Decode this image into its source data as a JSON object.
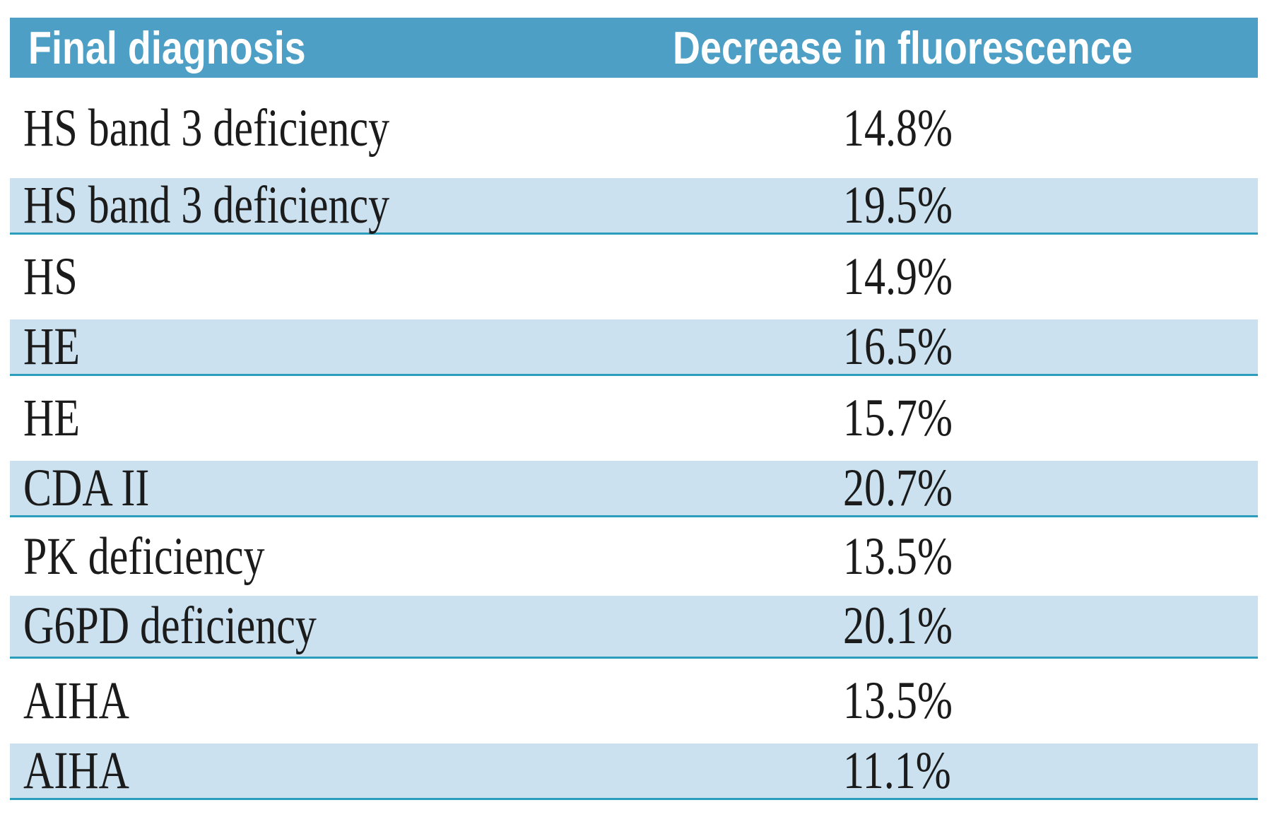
{
  "table": {
    "header": {
      "col1": "Final diagnosis",
      "col2": "Decrease in fluorescence"
    },
    "rows": [
      {
        "diagnosis": "HS band 3 deficiency",
        "decrease": "14.8%"
      },
      {
        "diagnosis": "HS band 3 deficiency",
        "decrease": "19.5%"
      },
      {
        "diagnosis": "HS",
        "decrease": "14.9%"
      },
      {
        "diagnosis": "HE",
        "decrease": "16.5%"
      },
      {
        "diagnosis": "HE",
        "decrease": "15.7%"
      },
      {
        "diagnosis": "CDA II",
        "decrease": "20.7%"
      },
      {
        "diagnosis": "PK deficiency",
        "decrease": "13.5%"
      },
      {
        "diagnosis": "G6PD deficiency",
        "decrease": "20.1%"
      },
      {
        "diagnosis": "AIHA",
        "decrease": "13.5%"
      },
      {
        "diagnosis": "AIHA",
        "decrease": "11.1%"
      }
    ]
  },
  "chart_data": {
    "type": "table",
    "title": "",
    "columns": [
      "Final diagnosis",
      "Decrease in fluorescence"
    ],
    "rows": [
      [
        "HS band 3 deficiency",
        "14.8%"
      ],
      [
        "HS band 3 deficiency",
        "19.5%"
      ],
      [
        "HS",
        "14.9%"
      ],
      [
        "HE",
        "16.5%"
      ],
      [
        "HE",
        "15.7%"
      ],
      [
        "CDA II",
        "20.7%"
      ],
      [
        "PK deficiency",
        "13.5%"
      ],
      [
        "G6PD deficiency",
        "20.1%"
      ],
      [
        "AIHA",
        "13.5%"
      ],
      [
        "AIHA",
        "11.1%"
      ]
    ],
    "decrease_values_percent": [
      14.8,
      19.5,
      14.9,
      16.5,
      15.7,
      20.7,
      13.5,
      20.1,
      13.5,
      11.1
    ],
    "layout_hints": {
      "striped_rows": "even data rows light blue with teal bottom rule",
      "header_style": "solid teal-blue band, white bold condensed sans text"
    }
  },
  "colors": {
    "header_bg": "#4D9FC5",
    "row_stripe_bg": "#CBE1EF",
    "stripe_border": "#2D9DBC",
    "body_text": "#1B1B1B",
    "header_text": "#FFFFFF"
  }
}
